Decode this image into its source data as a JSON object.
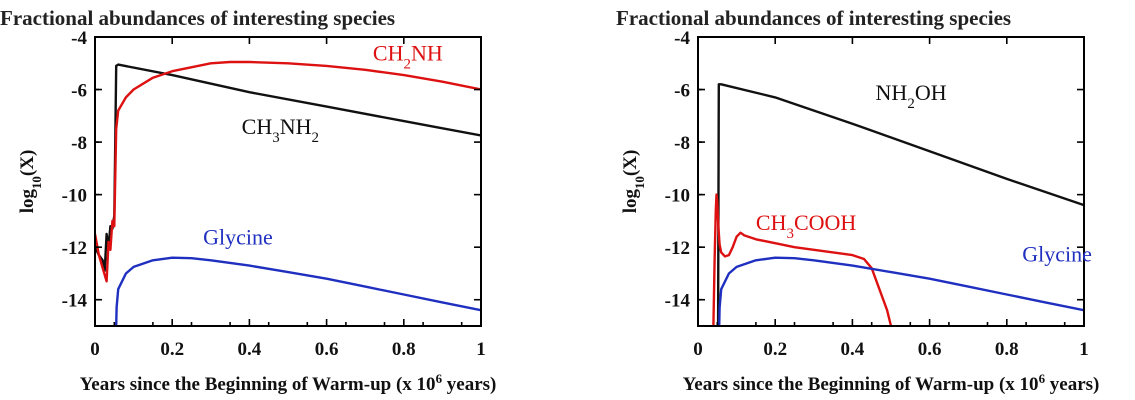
{
  "colors": {
    "black": "#111111",
    "red": "#dd1111",
    "blue": "#1f2fbf"
  },
  "chart_data": [
    {
      "type": "line",
      "title": "Fractional abundances of interesting species",
      "xlabel": {
        "text": "Years since the Beginning of Warm-up (x 10",
        "sup": "6",
        "tail": " years)"
      },
      "ylabel": {
        "base": "log",
        "sub": "10",
        "tail": "(X)"
      },
      "xlim": [
        0,
        1
      ],
      "ylim": [
        -15,
        -4
      ],
      "xticks": [
        0,
        0.2,
        0.4,
        0.6,
        0.8,
        1
      ],
      "xtick_labels": [
        "0",
        "0.2",
        "0.4",
        "0.6",
        "0.8",
        "1"
      ],
      "yticks": [
        -4,
        -6,
        -8,
        -10,
        -12,
        -14
      ],
      "ytick_labels": [
        "-4",
        "-6",
        "-8",
        "-10",
        "-12",
        "-14"
      ],
      "series": [
        {
          "name": "CH3NH2",
          "color": "#111111",
          "x": [
            0,
            0.01,
            0.02,
            0.025,
            0.03,
            0.035,
            0.04,
            0.045,
            0.05,
            0.052,
            0.055,
            0.06,
            0.2,
            0.4,
            0.6,
            0.8,
            1.0
          ],
          "y": [
            -12.0,
            -12.3,
            -12.5,
            -12.9,
            -11.5,
            -12.0,
            -11.2,
            -11.3,
            -10.8,
            -8.5,
            -5.1,
            -5.05,
            -5.45,
            -6.1,
            -6.65,
            -7.2,
            -7.75
          ]
        },
        {
          "name": "CH2NH",
          "color": "#dd1111",
          "x": [
            0,
            0.01,
            0.02,
            0.03,
            0.035,
            0.04,
            0.045,
            0.05,
            0.055,
            0.06,
            0.08,
            0.1,
            0.15,
            0.2,
            0.3,
            0.35,
            0.4,
            0.5,
            0.6,
            0.7,
            0.8,
            0.9,
            1.0
          ],
          "y": [
            -11.5,
            -12.3,
            -12.8,
            -13.3,
            -11.8,
            -12.1,
            -11.0,
            -11.2,
            -7.5,
            -6.8,
            -6.3,
            -6.0,
            -5.55,
            -5.3,
            -5.0,
            -4.95,
            -4.95,
            -5.0,
            -5.1,
            -5.25,
            -5.45,
            -5.7,
            -6.0
          ]
        },
        {
          "name": "Glycine",
          "color": "#1f2fbf",
          "x": [
            0.055,
            0.056,
            0.06,
            0.08,
            0.1,
            0.15,
            0.2,
            0.25,
            0.3,
            0.4,
            0.5,
            0.6,
            0.7,
            0.8,
            0.9,
            1.0
          ],
          "y": [
            -15.0,
            -14.3,
            -13.6,
            -13.0,
            -12.75,
            -12.5,
            -12.4,
            -12.42,
            -12.5,
            -12.7,
            -12.95,
            -13.2,
            -13.5,
            -13.8,
            -14.1,
            -14.4
          ]
        }
      ],
      "annotations": [
        {
          "parts": [
            [
              "CH",
              ""
            ],
            [
              "2",
              "sub"
            ],
            [
              "NH",
              ""
            ]
          ],
          "color": "#dd1111",
          "x": 0.72,
          "y": -4.9
        },
        {
          "parts": [
            [
              "CH",
              ""
            ],
            [
              "3",
              "sub"
            ],
            [
              "NH",
              ""
            ],
            [
              "2",
              "sub"
            ]
          ],
          "color": "#111111",
          "x": 0.38,
          "y": -7.7
        },
        {
          "parts": [
            [
              "Glycine",
              ""
            ]
          ],
          "color": "#1f2fbf",
          "x": 0.28,
          "y": -11.9
        }
      ]
    },
    {
      "type": "line",
      "title": "Fractional abundances of interesting species",
      "xlabel": {
        "text": "Years since the Beginning of Warm-up (x 10",
        "sup": "6",
        "tail": " years)"
      },
      "ylabel": {
        "base": "log",
        "sub": "10",
        "tail": "(X)"
      },
      "xlim": [
        0,
        1
      ],
      "ylim": [
        -15,
        -4
      ],
      "xticks": [
        0,
        0.2,
        0.4,
        0.6,
        0.8,
        1
      ],
      "xtick_labels": [
        "0",
        "0.2",
        "0.4",
        "0.6",
        "0.8",
        "1"
      ],
      "yticks": [
        -4,
        -6,
        -8,
        -10,
        -12,
        -14
      ],
      "ytick_labels": [
        "-4",
        "-6",
        "-8",
        "-10",
        "-12",
        "-14"
      ],
      "series": [
        {
          "name": "NH2OH",
          "color": "#111111",
          "x": [
            0.052,
            0.054,
            0.06,
            0.2,
            0.4,
            0.6,
            0.8,
            1.0
          ],
          "y": [
            -15.0,
            -5.8,
            -5.8,
            -6.3,
            -7.3,
            -8.35,
            -9.4,
            -10.4
          ]
        },
        {
          "name": "CH3COOH",
          "color": "#dd1111",
          "x": [
            0.04,
            0.043,
            0.046,
            0.048,
            0.05,
            0.053,
            0.056,
            0.06,
            0.07,
            0.08,
            0.09,
            0.1,
            0.11,
            0.12,
            0.15,
            0.2,
            0.25,
            0.3,
            0.35,
            0.4,
            0.43,
            0.45,
            0.47,
            0.49,
            0.5
          ],
          "y": [
            -15.0,
            -12.5,
            -10.6,
            -10.0,
            -10.3,
            -11.3,
            -11.9,
            -12.2,
            -12.35,
            -12.3,
            -12.0,
            -11.6,
            -11.45,
            -11.55,
            -11.7,
            -11.85,
            -12.0,
            -12.1,
            -12.2,
            -12.3,
            -12.45,
            -12.8,
            -13.6,
            -14.4,
            -15.0
          ]
        },
        {
          "name": "Glycine",
          "color": "#1f2fbf",
          "x": [
            0.055,
            0.056,
            0.06,
            0.08,
            0.1,
            0.15,
            0.2,
            0.25,
            0.3,
            0.4,
            0.5,
            0.6,
            0.7,
            0.8,
            0.9,
            1.0
          ],
          "y": [
            -15.0,
            -14.3,
            -13.6,
            -13.0,
            -12.75,
            -12.5,
            -12.4,
            -12.42,
            -12.5,
            -12.7,
            -12.95,
            -13.2,
            -13.5,
            -13.8,
            -14.1,
            -14.4
          ]
        }
      ],
      "annotations": [
        {
          "parts": [
            [
              "NH",
              ""
            ],
            [
              "2",
              "sub"
            ],
            [
              "OH",
              ""
            ]
          ],
          "color": "#111111",
          "x": 0.46,
          "y": -6.4
        },
        {
          "parts": [
            [
              "CH",
              ""
            ],
            [
              "3",
              "sub"
            ],
            [
              "COOH",
              ""
            ]
          ],
          "color": "#dd1111",
          "x": 0.15,
          "y": -11.35
        },
        {
          "parts": [
            [
              "Glycine",
              ""
            ]
          ],
          "color": "#1f2fbf",
          "x": 0.84,
          "y": -12.55
        }
      ]
    }
  ]
}
